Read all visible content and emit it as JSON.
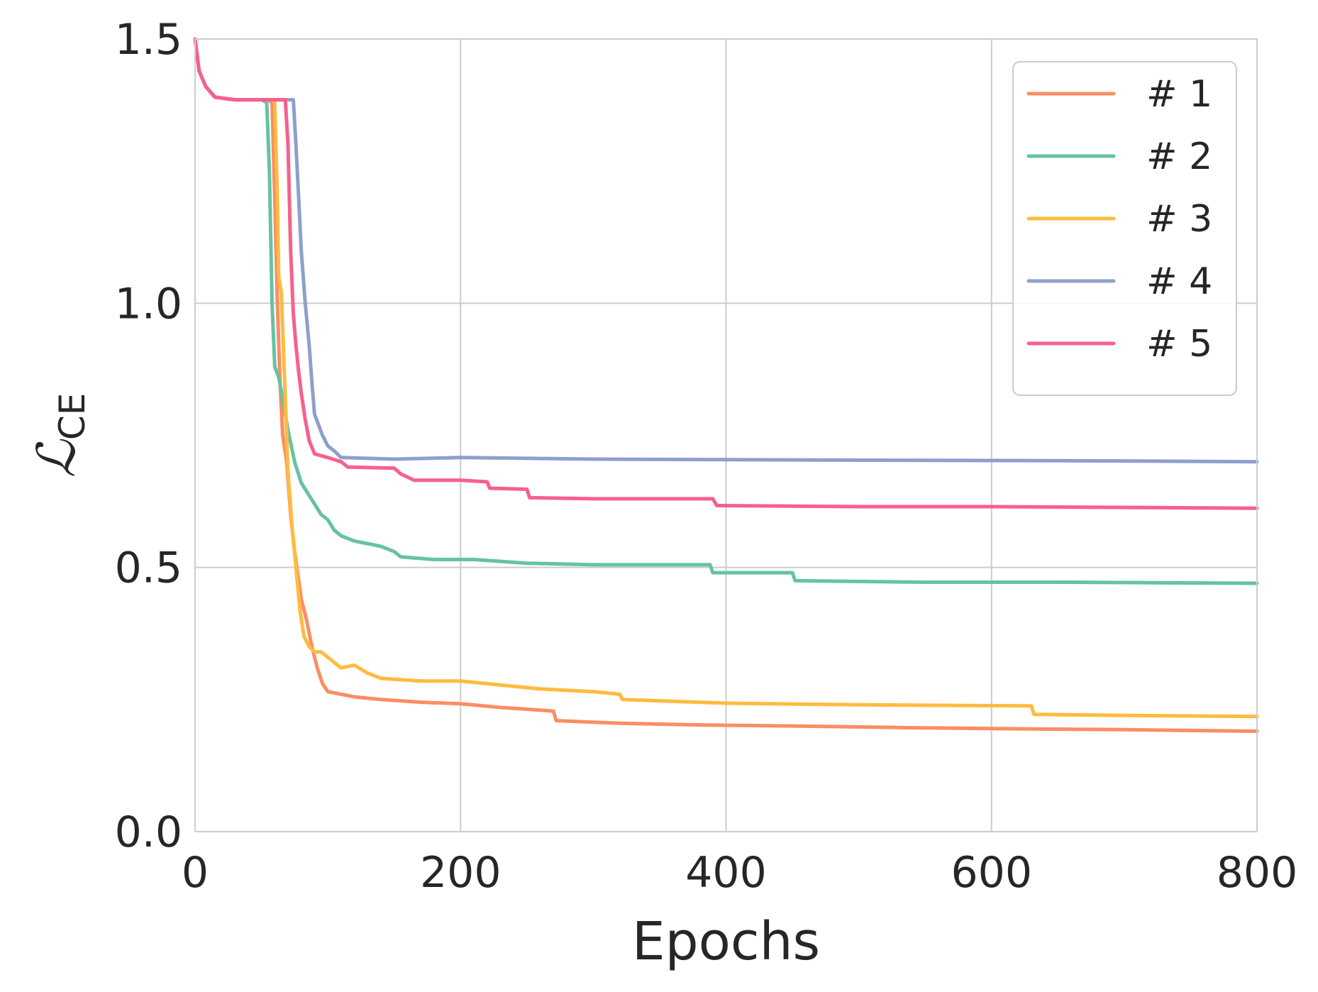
{
  "chart_data": {
    "type": "line",
    "title": "",
    "xlabel": "Epochs",
    "ylabel": {
      "main": "ℒ",
      "subscript": "CE"
    },
    "xlim": [
      0,
      800
    ],
    "ylim": [
      0,
      1.5
    ],
    "xticks": [
      0,
      200,
      400,
      600,
      800
    ],
    "yticks": [
      0.0,
      0.5,
      1.0,
      1.5
    ],
    "xtick_labels": [
      "0",
      "200",
      "400",
      "600",
      "800"
    ],
    "ytick_labels": [
      "0.0",
      "0.5",
      "1.0",
      "1.5"
    ],
    "grid": true,
    "legend_position": "top-right",
    "series": [
      {
        "name": "# 1",
        "color": "#fc8d62",
        "points": [
          [
            0,
            1.5
          ],
          [
            3,
            1.44
          ],
          [
            8,
            1.41
          ],
          [
            15,
            1.39
          ],
          [
            30,
            1.385
          ],
          [
            40,
            1.385
          ],
          [
            55,
            1.385
          ],
          [
            58,
            1.38
          ],
          [
            60,
            1.2
          ],
          [
            62,
            1.0
          ],
          [
            64,
            0.85
          ],
          [
            66,
            0.75
          ],
          [
            69,
            0.7
          ],
          [
            72,
            0.6
          ],
          [
            75,
            0.53
          ],
          [
            80,
            0.44
          ],
          [
            84,
            0.4
          ],
          [
            88,
            0.35
          ],
          [
            92,
            0.31
          ],
          [
            96,
            0.28
          ],
          [
            100,
            0.265
          ],
          [
            120,
            0.255
          ],
          [
            140,
            0.25
          ],
          [
            170,
            0.245
          ],
          [
            200,
            0.242
          ],
          [
            230,
            0.235
          ],
          [
            260,
            0.23
          ],
          [
            270,
            0.228
          ],
          [
            272,
            0.21
          ],
          [
            320,
            0.205
          ],
          [
            380,
            0.202
          ],
          [
            450,
            0.2
          ],
          [
            530,
            0.197
          ],
          [
            600,
            0.195
          ],
          [
            700,
            0.193
          ],
          [
            800,
            0.19
          ]
        ]
      },
      {
        "name": "# 2",
        "color": "#66c2a5",
        "points": [
          [
            0,
            1.5
          ],
          [
            3,
            1.44
          ],
          [
            8,
            1.41
          ],
          [
            15,
            1.39
          ],
          [
            30,
            1.385
          ],
          [
            50,
            1.385
          ],
          [
            54,
            1.38
          ],
          [
            56,
            1.25
          ],
          [
            58,
            1.0
          ],
          [
            60,
            0.88
          ],
          [
            63,
            0.86
          ],
          [
            66,
            0.82
          ],
          [
            70,
            0.76
          ],
          [
            75,
            0.7
          ],
          [
            80,
            0.66
          ],
          [
            85,
            0.64
          ],
          [
            90,
            0.62
          ],
          [
            95,
            0.6
          ],
          [
            100,
            0.59
          ],
          [
            105,
            0.57
          ],
          [
            110,
            0.56
          ],
          [
            120,
            0.55
          ],
          [
            140,
            0.54
          ],
          [
            150,
            0.53
          ],
          [
            155,
            0.52
          ],
          [
            180,
            0.515
          ],
          [
            210,
            0.515
          ],
          [
            250,
            0.508
          ],
          [
            300,
            0.505
          ],
          [
            388,
            0.505
          ],
          [
            390,
            0.49
          ],
          [
            450,
            0.49
          ],
          [
            452,
            0.475
          ],
          [
            550,
            0.472
          ],
          [
            650,
            0.472
          ],
          [
            800,
            0.47
          ]
        ]
      },
      {
        "name": "# 3",
        "color": "#ffbb40",
        "points": [
          [
            0,
            1.5
          ],
          [
            3,
            1.44
          ],
          [
            8,
            1.41
          ],
          [
            15,
            1.39
          ],
          [
            30,
            1.385
          ],
          [
            58,
            1.385
          ],
          [
            60,
            1.38
          ],
          [
            62,
            1.2
          ],
          [
            63,
            1.05
          ],
          [
            65,
            1.02
          ],
          [
            68,
            0.82
          ],
          [
            70,
            0.68
          ],
          [
            73,
            0.58
          ],
          [
            76,
            0.5
          ],
          [
            79,
            0.42
          ],
          [
            82,
            0.37
          ],
          [
            86,
            0.35
          ],
          [
            90,
            0.34
          ],
          [
            95,
            0.34
          ],
          [
            100,
            0.33
          ],
          [
            110,
            0.31
          ],
          [
            120,
            0.315
          ],
          [
            130,
            0.3
          ],
          [
            140,
            0.29
          ],
          [
            170,
            0.285
          ],
          [
            200,
            0.285
          ],
          [
            220,
            0.28
          ],
          [
            260,
            0.27
          ],
          [
            300,
            0.265
          ],
          [
            320,
            0.26
          ],
          [
            322,
            0.25
          ],
          [
            400,
            0.243
          ],
          [
            500,
            0.24
          ],
          [
            630,
            0.238
          ],
          [
            632,
            0.222
          ],
          [
            700,
            0.22
          ],
          [
            800,
            0.218
          ]
        ]
      },
      {
        "name": "# 4",
        "color": "#8da0cb",
        "points": [
          [
            0,
            1.5
          ],
          [
            3,
            1.44
          ],
          [
            8,
            1.41
          ],
          [
            15,
            1.39
          ],
          [
            30,
            1.385
          ],
          [
            74,
            1.385
          ],
          [
            76,
            1.3
          ],
          [
            78,
            1.2
          ],
          [
            80,
            1.1
          ],
          [
            83,
            1.0
          ],
          [
            86,
            0.92
          ],
          [
            88,
            0.85
          ],
          [
            90,
            0.79
          ],
          [
            93,
            0.77
          ],
          [
            96,
            0.75
          ],
          [
            100,
            0.73
          ],
          [
            105,
            0.72
          ],
          [
            110,
            0.708
          ],
          [
            150,
            0.705
          ],
          [
            200,
            0.708
          ],
          [
            300,
            0.705
          ],
          [
            500,
            0.703
          ],
          [
            650,
            0.702
          ],
          [
            800,
            0.7
          ]
        ]
      },
      {
        "name": "# 5",
        "color": "#f7608c",
        "points": [
          [
            0,
            1.5
          ],
          [
            3,
            1.44
          ],
          [
            8,
            1.41
          ],
          [
            15,
            1.39
          ],
          [
            30,
            1.385
          ],
          [
            68,
            1.385
          ],
          [
            70,
            1.3
          ],
          [
            72,
            1.1
          ],
          [
            74,
            0.98
          ],
          [
            76,
            0.92
          ],
          [
            78,
            0.87
          ],
          [
            80,
            0.83
          ],
          [
            83,
            0.78
          ],
          [
            86,
            0.74
          ],
          [
            90,
            0.715
          ],
          [
            100,
            0.708
          ],
          [
            110,
            0.7
          ],
          [
            115,
            0.69
          ],
          [
            150,
            0.688
          ],
          [
            155,
            0.677
          ],
          [
            165,
            0.665
          ],
          [
            200,
            0.665
          ],
          [
            220,
            0.662
          ],
          [
            222,
            0.65
          ],
          [
            250,
            0.648
          ],
          [
            252,
            0.632
          ],
          [
            300,
            0.63
          ],
          [
            390,
            0.63
          ],
          [
            393,
            0.617
          ],
          [
            500,
            0.615
          ],
          [
            600,
            0.615
          ],
          [
            800,
            0.612
          ]
        ]
      }
    ]
  }
}
